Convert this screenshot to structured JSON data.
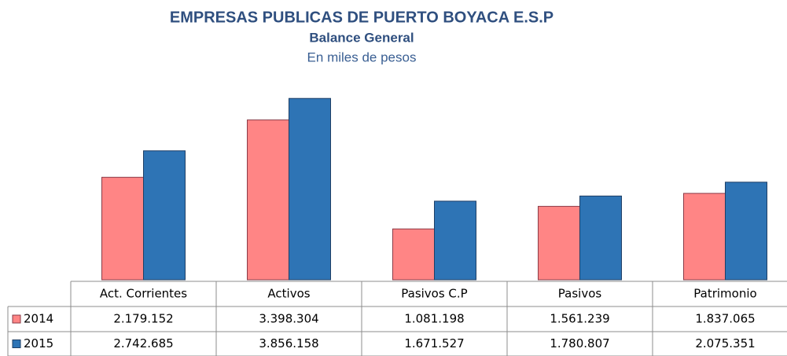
{
  "chart_data": {
    "type": "bar",
    "title": "EMPRESAS PUBLICAS DE PUERTO BOYACA E.S.P",
    "subtitle": "Balance  General",
    "unit_note": "En miles  de pesos",
    "categories": [
      "Act. Corrientes",
      "Activos",
      "Pasivos C.P",
      "Pasivos",
      "Patrimonio"
    ],
    "series": [
      {
        "name": "2014",
        "color": "#ff8585",
        "values": [
          2179152,
          3398304,
          1081198,
          1561239,
          1837065
        ],
        "value_labels": [
          "2.179.152",
          "3.398.304",
          "1.081.198",
          "1.561.239",
          "1.837.065"
        ]
      },
      {
        "name": "2015",
        "color": "#2e74b5",
        "values": [
          2742685,
          3856158,
          1671527,
          1780807,
          2075351
        ],
        "value_labels": [
          "2.742.685",
          "3.856.158",
          "1.671.527",
          "1.780.807",
          "2.075.351"
        ]
      }
    ]
  }
}
